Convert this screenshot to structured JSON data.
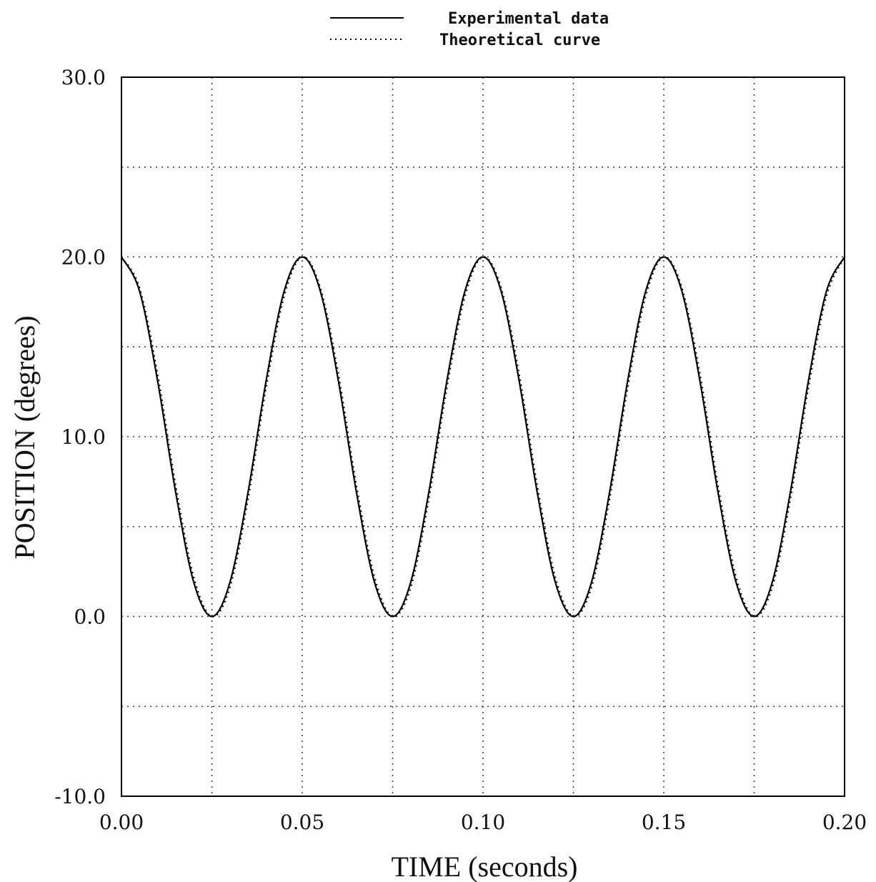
{
  "chart_data": {
    "type": "line",
    "title": "",
    "xlabel": "TIME (seconds)",
    "ylabel": "POSITION (degrees)",
    "xlim": [
      0.0,
      0.2
    ],
    "ylim": [
      -10.0,
      30.0
    ],
    "x_ticks": [
      0.0,
      0.05,
      0.1,
      0.15,
      0.2
    ],
    "x_tick_labels": [
      "0.00",
      "0.05",
      "0.10",
      "0.15",
      "0.20"
    ],
    "y_ticks": [
      -10.0,
      0.0,
      10.0,
      20.0,
      30.0
    ],
    "y_tick_labels": [
      "-10.0",
      "0.0",
      "10.0",
      "20.0",
      "30.0"
    ],
    "grid": true,
    "grid_style": "dotted",
    "legend_position": "top-center",
    "series": [
      {
        "name": "Experimental data",
        "style": "solid",
        "color": "#000000",
        "x": [
          0.0,
          0.005,
          0.01,
          0.015,
          0.02,
          0.025,
          0.03,
          0.035,
          0.04,
          0.045,
          0.05,
          0.055,
          0.06,
          0.065,
          0.07,
          0.075,
          0.08,
          0.085,
          0.09,
          0.095,
          0.1,
          0.105,
          0.11,
          0.115,
          0.12,
          0.125,
          0.13,
          0.135,
          0.14,
          0.145,
          0.15,
          0.155,
          0.16,
          0.165,
          0.17,
          0.175,
          0.18,
          0.185,
          0.19,
          0.195,
          0.2
        ],
        "y": [
          20.0,
          18.1,
          13.1,
          6.9,
          1.9,
          0.0,
          1.9,
          6.9,
          13.1,
          18.1,
          20.0,
          18.1,
          13.1,
          6.9,
          1.9,
          0.0,
          1.9,
          6.9,
          13.1,
          18.1,
          20.0,
          18.1,
          13.1,
          6.9,
          1.9,
          0.0,
          1.9,
          6.9,
          13.1,
          18.1,
          20.0,
          18.1,
          13.1,
          6.9,
          1.9,
          0.0,
          1.9,
          6.9,
          13.1,
          18.1,
          20.0
        ]
      },
      {
        "name": "Theoretical curve",
        "style": "dotted",
        "color": "#000000",
        "x": [
          0.0,
          0.005,
          0.01,
          0.015,
          0.02,
          0.025,
          0.03,
          0.035,
          0.04,
          0.045,
          0.05,
          0.055,
          0.06,
          0.065,
          0.07,
          0.075,
          0.08,
          0.085,
          0.09,
          0.095,
          0.1,
          0.105,
          0.11,
          0.115,
          0.12,
          0.125,
          0.13,
          0.135,
          0.14,
          0.145,
          0.15,
          0.155,
          0.16,
          0.165,
          0.17,
          0.175,
          0.18,
          0.185,
          0.19,
          0.195,
          0.2
        ],
        "y": [
          20.0,
          18.3,
          13.5,
          7.3,
          2.2,
          0.0,
          1.6,
          6.5,
          12.7,
          17.8,
          20.0,
          18.3,
          13.5,
          7.3,
          2.2,
          0.0,
          1.6,
          6.5,
          12.7,
          17.8,
          20.0,
          18.3,
          13.5,
          7.3,
          2.2,
          0.0,
          1.6,
          6.5,
          12.7,
          17.8,
          20.0,
          18.3,
          13.5,
          7.3,
          2.2,
          0.0,
          1.6,
          6.5,
          12.7,
          17.8,
          20.0
        ]
      }
    ]
  }
}
